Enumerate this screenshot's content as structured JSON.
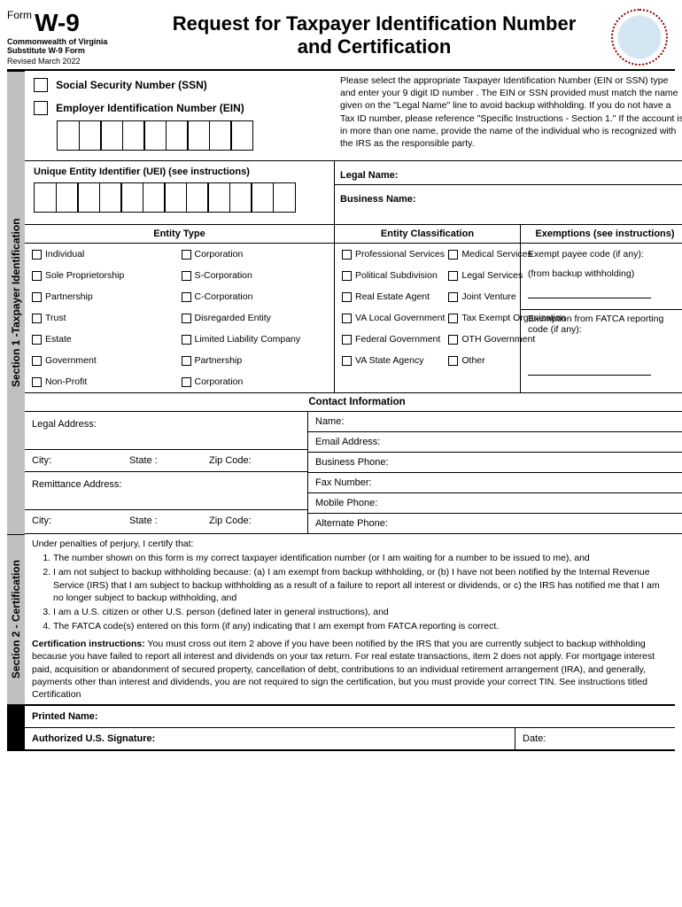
{
  "header": {
    "form_label": "Form",
    "form_number": "W-9",
    "sub1": "Commonwealth of Virginia",
    "sub2": "Substitute W-9 Form",
    "revised": "Revised March 2022",
    "title": "Request for Taxpayer Identification Number and Certification"
  },
  "section1": {
    "tab": "Section 1 -Taxpayer Identification",
    "ssn_label": "Social Security Number (SSN)",
    "ein_label": "Employer Identification Number (EIN)",
    "instructions": "Please select the appropriate Taxpayer Identification Number (EIN or SSN) type and enter your 9 digit ID number . The EIN or SSN provided must match the name given on the \"Legal Name\" line to avoid backup withholding. If you do not have a Tax ID number, please reference \"Specific Instructions - Section 1.\" If the account is in more than one name, provide the name of the individual who is recognized with the IRS as the responsible party.",
    "uei_label": "Unique Entity Identifier (UEI) (see instructions)",
    "legal_name": "Legal Name:",
    "business_name": "Business Name:",
    "entity_type_hdr": "Entity Type",
    "entity_class_hdr": "Entity Classification",
    "exemptions_hdr": "Exemptions (see instructions)",
    "entity_type": [
      "Individual",
      "Corporation",
      "Sole Proprietorship",
      "S-Corporation",
      "Partnership",
      "C-Corporation",
      "Trust",
      "Disregarded Entity",
      "Estate",
      "Limited Liability Company",
      "Government",
      "Partnership",
      "Non-Profit",
      "Corporation"
    ],
    "entity_class": [
      "Professional Services",
      "Medical Services",
      "Political Subdivision",
      "Legal Services",
      "Real Estate Agent",
      "Joint Venture",
      "VA Local Government",
      "Tax Exempt Organization",
      "Federal Government",
      "OTH Government",
      "VA State Agency",
      "Other"
    ],
    "exempt_payee": "Exempt payee code (if any):",
    "exempt_backup": "(from backup withholding)",
    "exempt_fatca": "Exemption from FATCA reporting code (if any):",
    "contact_hdr": "Contact Information",
    "legal_addr": "Legal Address:",
    "city": "City:",
    "state": "State :",
    "zip": "Zip Code:",
    "remit_addr": "Remittance Address:",
    "c_name": "Name:",
    "c_email": "Email Address:",
    "c_bphone": "Business Phone:",
    "c_fax": "Fax Number:",
    "c_mobile": "Mobile Phone:",
    "c_alt": "Alternate Phone:"
  },
  "section2": {
    "tab": "Section 2 - Certification",
    "intro": "Under penalties of perjury, I certify that:",
    "items": [
      "The number shown on this form is my correct taxpayer identification number (or I am waiting for a number to be issued to me), and",
      "I am not subject to backup withholding because: (a) I am exempt from backup withholding, or (b) I have not been notified by the Internal Revenue Service (IRS) that I am subject to backup withholding as a result of a failure to report all interest or dividends, or c) the IRS has notified me that I am no longer subject to backup withholding, and",
      "I am a U.S. citizen or other U.S. person (defined later in general instructions), and",
      "The FATCA code(s) entered on this form (if any) indicating that I am exempt from FATCA reporting is correct."
    ],
    "cert_inst_label": "Certification instructions:",
    "cert_inst": " You must cross out item 2 above if you have been notified by the IRS that you are currently subject to backup withholding because you have failed to report all interest and dividends on your tax return. For real estate transactions, item 2 does not apply. For mortgage interest paid, acquisition or abandonment of secured property, cancellation of debt, contributions to an individual retirement arrangement (IRA), and generally, payments other than interest and dividends, you are not required to sign the certification, but you must provide your correct TIN. See instructions titled Certification"
  },
  "signature": {
    "printed": "Printed Name:",
    "auth": "Authorized U.S. Signature:",
    "date": "Date:"
  },
  "colors": {
    "border": "#000000",
    "side_tab_bg": "#c0c0c0",
    "sig_tab_bg": "#000000",
    "background": "#ffffff"
  }
}
